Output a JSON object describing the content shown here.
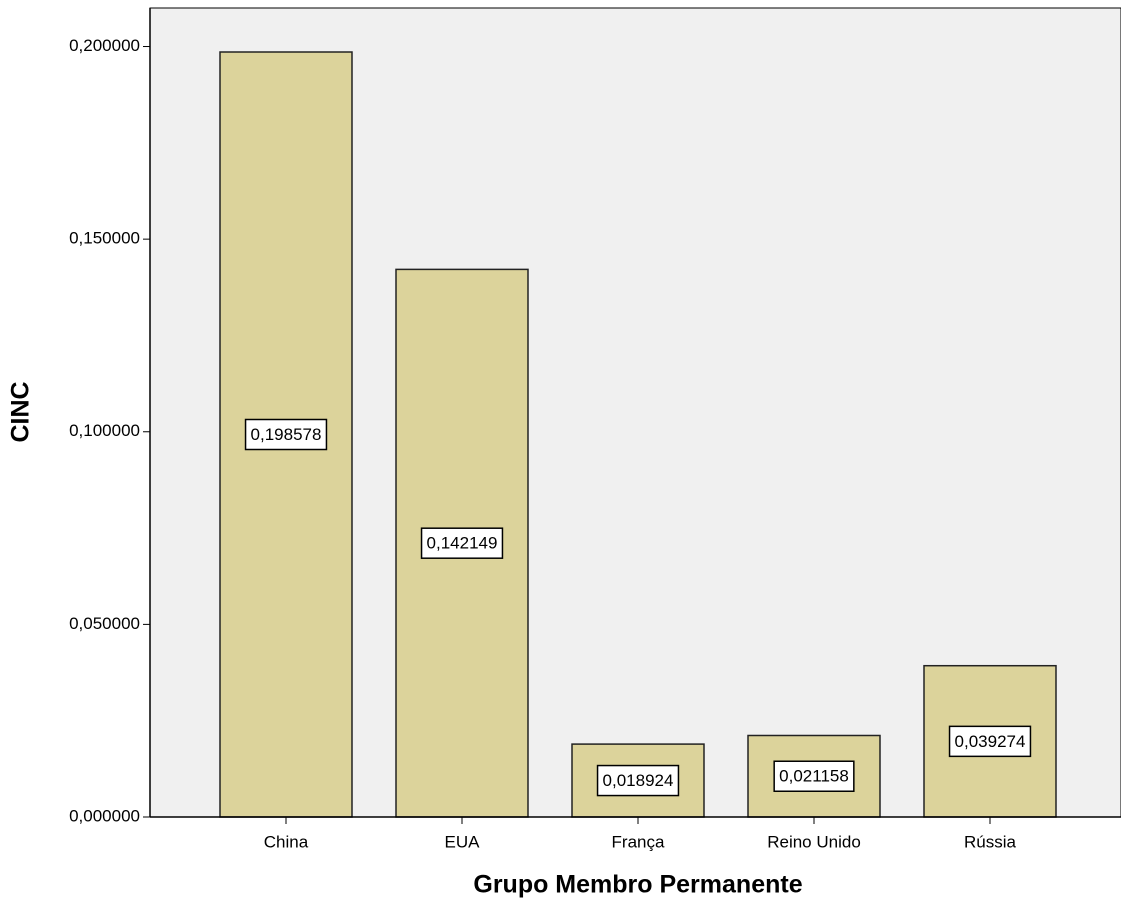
{
  "chart_data": {
    "type": "bar",
    "x_label": "Grupo Membro Permanente",
    "y_label": "CINC",
    "categories": [
      "China",
      "EUA",
      "França",
      "Reino Unido",
      "Rússia"
    ],
    "values": [
      0.198578,
      0.142149,
      0.018924,
      0.021158,
      0.039274
    ],
    "value_labels": [
      "0,198578",
      "0,142149",
      "0,018924",
      "0,021158",
      "0,039274"
    ],
    "color": "#dcd39b",
    "ylim": [
      0,
      0.21
    ],
    "yticks": [
      {
        "value": 0,
        "label": "0,000000"
      },
      {
        "value": 0.05,
        "label": "0,050000"
      },
      {
        "value": 0.1,
        "label": "0,100000"
      },
      {
        "value": 0.15,
        "label": "0,150000"
      },
      {
        "value": 0.2,
        "label": "0,200000"
      }
    ]
  }
}
